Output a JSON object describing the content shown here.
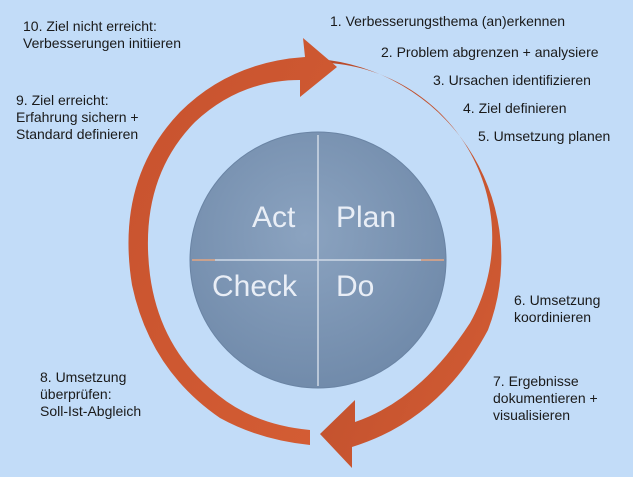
{
  "quadrants": {
    "act": "Act",
    "plan": "Plan",
    "check": "Check",
    "do": "Do"
  },
  "steps": {
    "s1": "1. Verbesserungsthema (an)erkennen",
    "s2": "2. Problem abgrenzen + analysiere",
    "s3": "3. Ursachen identifizieren",
    "s4": "4. Ziel definieren",
    "s5": "5. Umsetzung planen",
    "s6": "6. Umsetzung\nkoordinieren",
    "s7": "7. Ergebnisse\ndokumentieren +\nvisualisieren",
    "s8": "8. Umsetzung\nüberprüfen:\nSoll-Ist-Abgleich",
    "s9": "9. Ziel erreicht:\nErfahrung sichern +\nStandard definieren",
    "s10": "10. Ziel nicht erreicht:\nVerbesserungen initiieren"
  },
  "colors": {
    "arrow": "#c7522e",
    "arrow_dark": "#9e3b1f",
    "circle": "#7f98b6",
    "background": "#c2dcf8"
  }
}
